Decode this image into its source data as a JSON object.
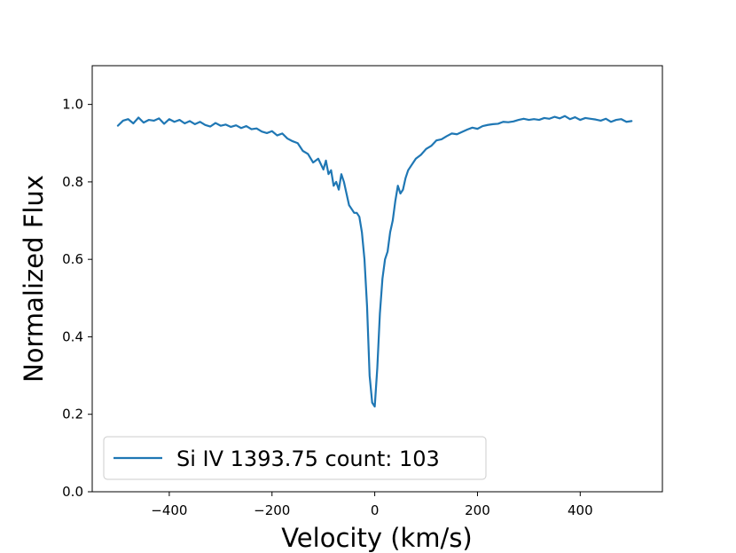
{
  "chart_data": {
    "type": "line",
    "title": "",
    "xlabel": "Velocity (km/s)",
    "ylabel": "Normalized Flux",
    "xlim": [
      -550,
      560
    ],
    "ylim": [
      0.0,
      1.1
    ],
    "xticks": [
      -400,
      -200,
      0,
      200,
      400
    ],
    "yticks": [
      0.0,
      0.2,
      0.4,
      0.6,
      0.8,
      1.0
    ],
    "xtick_labels": [
      "−400",
      "−200",
      "0",
      "200",
      "400"
    ],
    "ytick_labels": [
      "0.0",
      "0.2",
      "0.4",
      "0.6",
      "0.8",
      "1.0"
    ],
    "grid": false,
    "legend": {
      "position": "lower-left",
      "entries": [
        "Si IV 1393.75 count: 103"
      ]
    },
    "series": [
      {
        "name": "Si IV 1393.75 count: 103",
        "color": "#1f77b4",
        "x": [
          -500,
          -490,
          -480,
          -470,
          -460,
          -450,
          -440,
          -430,
          -420,
          -410,
          -400,
          -390,
          -380,
          -370,
          -360,
          -350,
          -340,
          -330,
          -320,
          -310,
          -300,
          -290,
          -280,
          -270,
          -260,
          -250,
          -240,
          -230,
          -220,
          -210,
          -200,
          -190,
          -180,
          -170,
          -160,
          -150,
          -140,
          -130,
          -120,
          -110,
          -100,
          -95,
          -90,
          -85,
          -80,
          -75,
          -70,
          -65,
          -60,
          -55,
          -50,
          -45,
          -40,
          -35,
          -30,
          -25,
          -20,
          -15,
          -10,
          -5,
          0,
          5,
          10,
          15,
          20,
          25,
          30,
          35,
          40,
          45,
          50,
          55,
          60,
          65,
          70,
          80,
          90,
          100,
          110,
          120,
          130,
          140,
          150,
          160,
          170,
          180,
          190,
          200,
          210,
          220,
          230,
          240,
          250,
          260,
          270,
          280,
          290,
          300,
          310,
          320,
          330,
          340,
          350,
          360,
          370,
          380,
          390,
          400,
          410,
          420,
          430,
          440,
          450,
          460,
          470,
          480,
          490,
          500
        ],
        "y": [
          0.945,
          0.958,
          0.962,
          0.951,
          0.966,
          0.953,
          0.96,
          0.958,
          0.964,
          0.95,
          0.962,
          0.955,
          0.96,
          0.951,
          0.957,
          0.949,
          0.955,
          0.947,
          0.943,
          0.952,
          0.945,
          0.948,
          0.942,
          0.946,
          0.939,
          0.944,
          0.936,
          0.938,
          0.93,
          0.926,
          0.931,
          0.92,
          0.925,
          0.912,
          0.905,
          0.9,
          0.88,
          0.872,
          0.85,
          0.86,
          0.832,
          0.855,
          0.82,
          0.83,
          0.79,
          0.8,
          0.78,
          0.82,
          0.8,
          0.77,
          0.74,
          0.73,
          0.72,
          0.72,
          0.71,
          0.67,
          0.6,
          0.48,
          0.3,
          0.23,
          0.22,
          0.32,
          0.46,
          0.55,
          0.6,
          0.62,
          0.67,
          0.7,
          0.75,
          0.79,
          0.77,
          0.78,
          0.81,
          0.83,
          0.84,
          0.86,
          0.87,
          0.885,
          0.893,
          0.907,
          0.91,
          0.918,
          0.925,
          0.923,
          0.929,
          0.935,
          0.94,
          0.937,
          0.944,
          0.947,
          0.949,
          0.95,
          0.955,
          0.954,
          0.956,
          0.96,
          0.963,
          0.96,
          0.962,
          0.96,
          0.965,
          0.963,
          0.968,
          0.964,
          0.97,
          0.962,
          0.967,
          0.96,
          0.965,
          0.963,
          0.961,
          0.958,
          0.963,
          0.955,
          0.96,
          0.962,
          0.955,
          0.957
        ]
      }
    ]
  }
}
